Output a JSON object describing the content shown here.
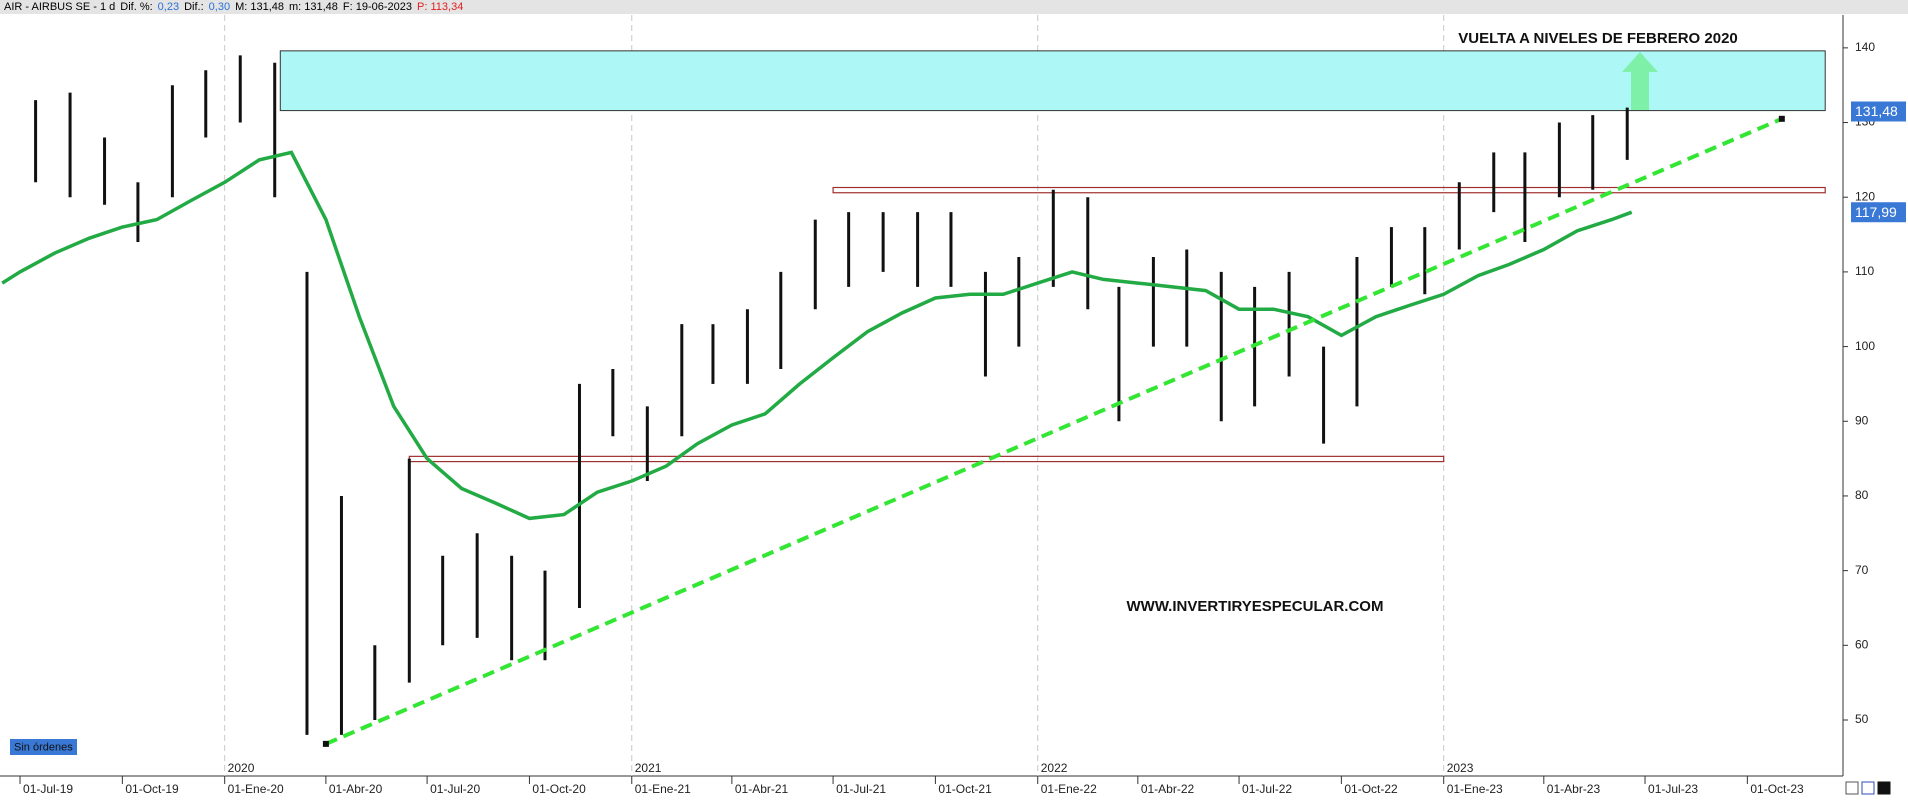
{
  "header": [
    {
      "text": "AIR - AIRBUS SE -  1 d",
      "color": "#000000"
    },
    {
      "text": "Dif. %:",
      "color": "#000000"
    },
    {
      "text": "0,23",
      "color": "#2a6fd6"
    },
    {
      "text": "Dif.:",
      "color": "#000000"
    },
    {
      "text": "0,30",
      "color": "#2a6fd6"
    },
    {
      "text": "M: 131,48",
      "color": "#000000"
    },
    {
      "text": "m: 131,48",
      "color": "#000000"
    },
    {
      "text": "F: 19-06-2023",
      "color": "#000000"
    },
    {
      "text": "P: 113,34",
      "color": "#e02020"
    }
  ],
  "chart_data": {
    "type": "ohlc-range",
    "xlim": [
      "2019-06-13",
      "2023-12-26"
    ],
    "ylim": [
      42.5,
      144.4
    ],
    "yticks": [
      50,
      60,
      70,
      80,
      90,
      100,
      110,
      120,
      130,
      140
    ],
    "xticks": [
      {
        "value": "2019-07-01",
        "label": "01-Jul-19"
      },
      {
        "value": "2019-10-01",
        "label": "01-Oct-19"
      },
      {
        "value": "2020-01-01",
        "label": "01-Ene-20"
      },
      {
        "value": "2020-04-01",
        "label": "01-Abr-20"
      },
      {
        "value": "2020-07-01",
        "label": "01-Jul-20"
      },
      {
        "value": "2020-10-01",
        "label": "01-Oct-20"
      },
      {
        "value": "2021-01-01",
        "label": "01-Ene-21"
      },
      {
        "value": "2021-04-01",
        "label": "01-Abr-21"
      },
      {
        "value": "2021-07-01",
        "label": "01-Jul-21"
      },
      {
        "value": "2021-10-01",
        "label": "01-Oct-21"
      },
      {
        "value": "2022-01-01",
        "label": "01-Ene-22"
      },
      {
        "value": "2022-04-01",
        "label": "01-Abr-22"
      },
      {
        "value": "2022-07-01",
        "label": "01-Jul-22"
      },
      {
        "value": "2022-10-01",
        "label": "01-Oct-22"
      },
      {
        "value": "2023-01-01",
        "label": "01-Ene-23"
      },
      {
        "value": "2023-04-01",
        "label": "01-Abr-23"
      },
      {
        "value": "2023-07-01",
        "label": "01-Jul-23"
      },
      {
        "value": "2023-10-01",
        "label": "01-Oct-23"
      }
    ],
    "year_labels": [
      {
        "value": "2020-01-01",
        "label": "2020"
      },
      {
        "value": "2021-01-01",
        "label": "2021"
      },
      {
        "value": "2022-01-01",
        "label": "2022"
      },
      {
        "value": "2023-01-01",
        "label": "2023"
      }
    ],
    "bar_color": "#111111",
    "x": [
      "2019-07-15",
      "2019-08-15",
      "2019-09-15",
      "2019-10-15",
      "2019-11-15",
      "2019-12-15",
      "2020-01-15",
      "2020-02-15",
      "2020-03-15",
      "2020-04-15",
      "2020-05-15",
      "2020-06-15",
      "2020-07-15",
      "2020-08-15",
      "2020-09-15",
      "2020-10-15",
      "2020-11-15",
      "2020-12-15",
      "2021-01-15",
      "2021-02-15",
      "2021-03-15",
      "2021-04-15",
      "2021-05-15",
      "2021-06-15",
      "2021-07-15",
      "2021-08-15",
      "2021-09-15",
      "2021-10-15",
      "2021-11-15",
      "2021-12-15",
      "2022-01-15",
      "2022-02-15",
      "2022-03-15",
      "2022-04-15",
      "2022-05-15",
      "2022-06-15",
      "2022-07-15",
      "2022-08-15",
      "2022-09-15",
      "2022-10-15",
      "2022-11-15",
      "2022-12-15",
      "2023-01-15",
      "2023-02-15",
      "2023-03-15",
      "2023-04-15",
      "2023-05-15",
      "2023-06-15"
    ],
    "low": [
      122,
      120,
      119,
      114,
      120,
      128,
      130,
      120,
      48,
      48,
      50,
      55,
      60,
      61,
      58,
      58,
      65,
      88,
      82,
      88,
      95,
      95,
      97,
      105,
      108,
      110,
      108,
      108,
      96,
      100,
      108,
      105,
      90,
      100,
      100,
      90,
      92,
      96,
      87,
      92,
      108,
      107,
      113,
      118,
      114,
      120,
      121,
      125
    ],
    "high": [
      133,
      134,
      128,
      122,
      135,
      137,
      139,
      138,
      110,
      80,
      60,
      85,
      72,
      75,
      72,
      70,
      95,
      97,
      92,
      103,
      103,
      105,
      110,
      117,
      118,
      118,
      118,
      118,
      110,
      112,
      121,
      120,
      108,
      112,
      113,
      110,
      108,
      110,
      100,
      112,
      116,
      116,
      122,
      126,
      126,
      130,
      131,
      132
    ],
    "ma": {
      "color": "#22aa44",
      "x": [
        "2019-06-15",
        "2019-07-01",
        "2019-08-01",
        "2019-09-01",
        "2019-10-01",
        "2019-11-01",
        "2019-12-01",
        "2020-01-01",
        "2020-02-01",
        "2020-03-01",
        "2020-04-01",
        "2020-05-01",
        "2020-06-01",
        "2020-07-01",
        "2020-08-01",
        "2020-09-01",
        "2020-10-01",
        "2020-11-01",
        "2020-12-01",
        "2021-01-01",
        "2021-02-01",
        "2021-03-01",
        "2021-04-01",
        "2021-05-01",
        "2021-06-01",
        "2021-07-01",
        "2021-08-01",
        "2021-09-01",
        "2021-10-01",
        "2021-11-01",
        "2021-12-01",
        "2022-01-01",
        "2022-02-01",
        "2022-03-01",
        "2022-04-01",
        "2022-05-01",
        "2022-06-01",
        "2022-07-01",
        "2022-08-01",
        "2022-09-01",
        "2022-10-01",
        "2022-11-01",
        "2022-12-01",
        "2023-01-01",
        "2023-02-01",
        "2023-03-01",
        "2023-04-01",
        "2023-05-01",
        "2023-06-01",
        "2023-06-19"
      ],
      "values": [
        108.5,
        110,
        112.5,
        114.5,
        116,
        117,
        119.5,
        122,
        125,
        126,
        117,
        104,
        92,
        85,
        81,
        79,
        77,
        77.5,
        80.5,
        82,
        84,
        87,
        89.5,
        91,
        95,
        98.5,
        102,
        104.5,
        106.5,
        107,
        107,
        108.5,
        110,
        109,
        108.5,
        108,
        107.5,
        105,
        105,
        104,
        101.5,
        104,
        105.5,
        107,
        109.5,
        111,
        113,
        115.5,
        117,
        117.99
      ]
    },
    "zone": {
      "x": [
        "2020-02-20",
        "2023-12-10"
      ],
      "y": [
        131.6,
        139.6
      ],
      "color": "#aef7f7"
    },
    "levels": [
      {
        "x": [
          "2021-07-01",
          "2023-12-10"
        ],
        "y": [
          120.6,
          121.3
        ]
      },
      {
        "x": [
          "2020-06-15",
          "2023-01-01"
        ],
        "y": [
          84.6,
          85.3
        ]
      }
    ],
    "level_color": "#a03030",
    "trendline": {
      "x": [
        "2020-04-01",
        "2023-11-01"
      ],
      "y": [
        46.8,
        130.5
      ],
      "color": "#33e633"
    },
    "price_tags": [
      {
        "value": 131.48,
        "label": "131,48"
      },
      {
        "value": 117.99,
        "label": "117,99"
      }
    ],
    "tag_color": "#3a78d6",
    "annotations": [
      "VUELTA A NIVELES DE FEBRERO 2020",
      "WWW.INVERTIRYESPECULAR.COM"
    ],
    "status": "Sin órdenes"
  }
}
